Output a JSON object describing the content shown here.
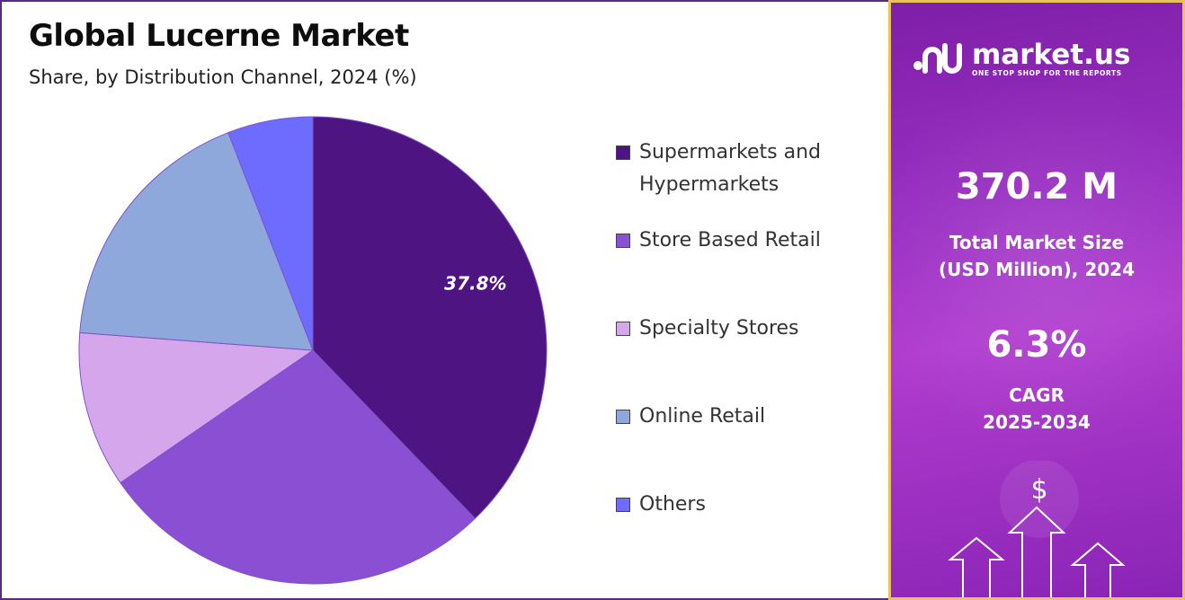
{
  "chart_data": {
    "type": "pie",
    "title": "Global Lucerne Market",
    "subtitle": "Share, by Distribution Channel, 2024 (%)",
    "categories": [
      "Supermarkets and Hypermarkets",
      "Store Based Retail",
      "Specialty Stores",
      "Online Retail",
      "Others"
    ],
    "values": [
      37.8,
      27.6,
      10.8,
      17.9,
      5.9
    ],
    "colors": [
      "#4d1482",
      "#8a4fd2",
      "#d6a6ec",
      "#8fa8db",
      "#6e6bff"
    ],
    "data_labels": [
      "37.8%",
      "",
      "",
      "",
      ""
    ],
    "legend_placement": "right"
  },
  "legend": {
    "items": [
      {
        "line1": "Supermarkets and",
        "line2": "Hypermarkets",
        "color": "#4d1482"
      },
      {
        "line1": "Store Based Retail",
        "line2": "",
        "color": "#8a4fd2"
      },
      {
        "line1": "Specialty Stores",
        "line2": "",
        "color": "#d6a6ec"
      },
      {
        "line1": "Online Retail",
        "line2": "",
        "color": "#8fa8db"
      },
      {
        "line1": "Others",
        "line2": "",
        "color": "#6e6bff"
      }
    ]
  },
  "brand": {
    "name": "market.us",
    "tagline": "ONE STOP SHOP FOR THE REPORTS",
    "logo_icon": "market-us-logo-icon"
  },
  "stats": {
    "market_size_value": "370.2 M",
    "market_size_label_1": "Total Market Size",
    "market_size_label_2": "(USD Million), 2024",
    "cagr_value": "6.3%",
    "cagr_label_1": "CAGR",
    "cagr_label_2": "2025-2034"
  },
  "decor": {
    "currency_symbol": "$",
    "icon": "growth-arrows-icon"
  }
}
